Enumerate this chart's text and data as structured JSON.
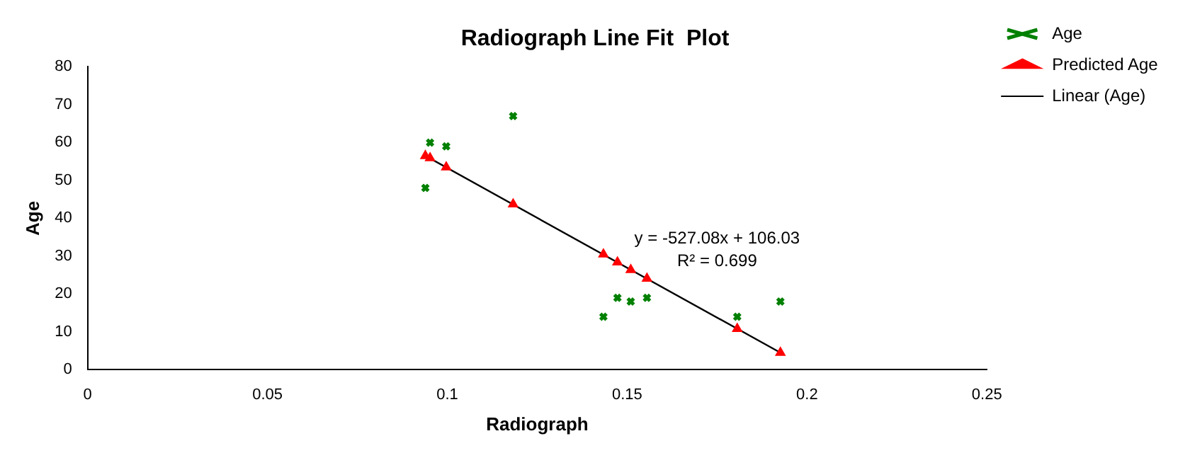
{
  "chart_data": {
    "type": "scatter",
    "title": "Radiograph Line Fit  Plot",
    "xlabel": "Radiograph",
    "ylabel": "Age",
    "xlim": [
      0,
      0.25
    ],
    "xticks": [
      0,
      0.05,
      0.1,
      0.15,
      0.2,
      0.25
    ],
    "ylim": [
      0,
      80
    ],
    "yticks": [
      0,
      10,
      20,
      30,
      40,
      50,
      60,
      70,
      80
    ],
    "grid": false,
    "legend": "top right",
    "annotations": [
      "y = -527.08x + 106.03",
      "R² = 0.699"
    ],
    "series": [
      {
        "name": "Age",
        "type": "scatter",
        "marker": "cross",
        "color": "#008000",
        "x": [
          0.0939,
          0.0952,
          0.0997,
          0.1183,
          0.1434,
          0.1473,
          0.151,
          0.1555,
          0.1806,
          0.1926
        ],
        "values": [
          48,
          60,
          59,
          67,
          14,
          19,
          18,
          19,
          14,
          18
        ]
      },
      {
        "name": "Predicted Age",
        "type": "scatter",
        "marker": "triangle",
        "color": "#ff0000",
        "x": [
          0.0939,
          0.0952,
          0.0997,
          0.1183,
          0.1434,
          0.1473,
          0.151,
          0.1555,
          0.1806,
          0.1926
        ],
        "values": [
          56.5,
          55.9,
          53.5,
          43.7,
          30.5,
          28.4,
          26.4,
          24.1,
          10.8,
          4.5
        ]
      },
      {
        "name": "Linear (Age)",
        "type": "line",
        "marker": "none",
        "color": "#000000",
        "x": [
          0.0939,
          0.1926
        ],
        "values": [
          56.5,
          4.5
        ]
      }
    ]
  }
}
